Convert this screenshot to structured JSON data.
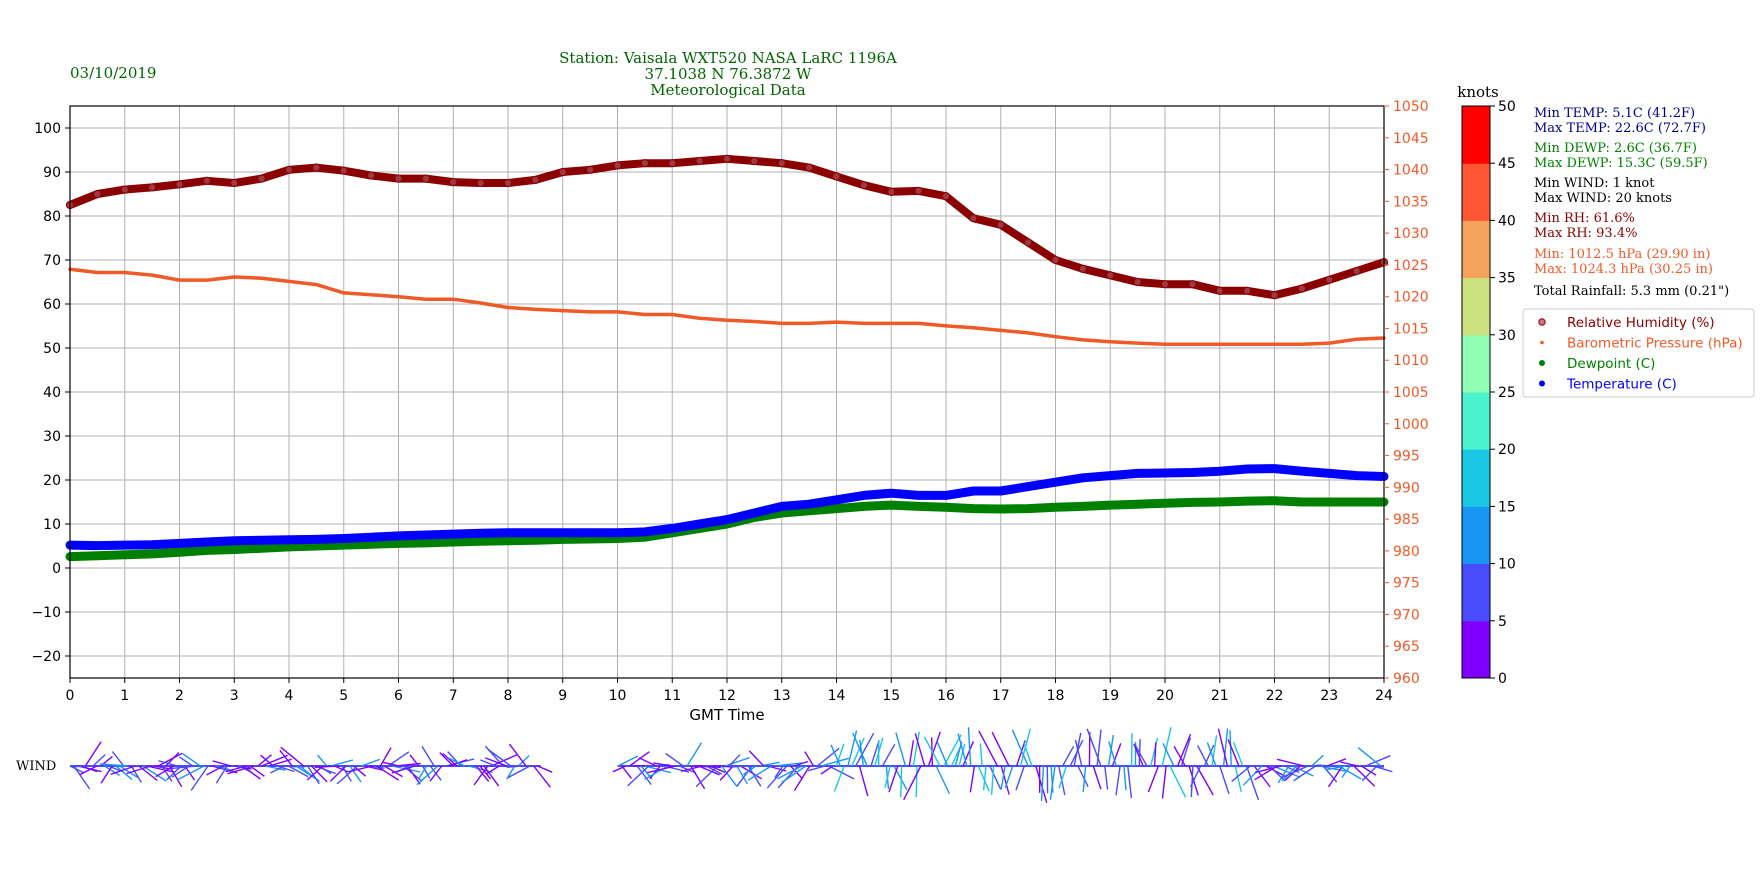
{
  "header": {
    "date": "03/10/2019",
    "title_lines": [
      "Station:  Vaisala WXT520  NASA LaRC 1196A",
      "37.1038 N 76.3872 W",
      "Meteorological Data"
    ]
  },
  "colors": {
    "rh": "#8b0000",
    "pressure": "#f05a28",
    "dewpoint": "#008000",
    "temperature": "#0000ff",
    "header_text": "#006400",
    "stats_temp": "#00008b",
    "stats_rh": "#8b0000"
  },
  "stats": [
    {
      "text": "Min TEMP: 5.1C (41.2F)",
      "color": "#00008b"
    },
    {
      "text": "Max TEMP: 22.6C (72.7F)",
      "color": "#00008b"
    },
    {
      "text": "Min DEWP: 2.6C (36.7F)",
      "color": "#008000"
    },
    {
      "text": "Max DEWP: 15.3C (59.5F)",
      "color": "#008000"
    },
    {
      "text": "Min WIND: 1 knot",
      "color": "#000000"
    },
    {
      "text": "Max WIND: 20 knots",
      "color": "#000000"
    },
    {
      "text": "Min RH: 61.6%",
      "color": "#8b0000"
    },
    {
      "text": "Max RH: 93.4%",
      "color": "#8b0000"
    },
    {
      "text": "Min: 1012.5 hPa (29.90 in)",
      "color": "#f05a28"
    },
    {
      "text": "Max: 1024.3 hPa (30.25 in)",
      "color": "#f05a28"
    },
    {
      "text": "Total Rainfall: 5.3 mm (0.21\")",
      "color": "#000000"
    }
  ],
  "legend": [
    {
      "label": "Relative Humidity (%)",
      "color": "#8b0000",
      "marker": "hollow"
    },
    {
      "label": "Barometric Pressure (hPa)",
      "color": "#f05a28",
      "marker": "small"
    },
    {
      "label": "Dewpoint (C)",
      "color": "#008000",
      "marker": "dot"
    },
    {
      "label": "Temperature (C)",
      "color": "#0000ff",
      "marker": "dot"
    }
  ],
  "wind_label": "WIND",
  "colorbar": {
    "title": "knots",
    "ticks": [
      "0",
      "5",
      "10",
      "15",
      "20",
      "25",
      "30",
      "35",
      "40",
      "45",
      "50"
    ],
    "bands": [
      "#7f00ff",
      "#4a4bfb",
      "#1996f3",
      "#1ac7e3",
      "#4cf2ce",
      "#91ffb3",
      "#cbe27f",
      "#f6a35e",
      "#ff5733",
      "#ff0000"
    ]
  },
  "chart_data": {
    "type": "scatter",
    "xlabel": "GMT Time",
    "xlim": [
      0,
      24
    ],
    "x_ticks": [
      "0",
      "1",
      "2",
      "3",
      "4",
      "5",
      "6",
      "7",
      "8",
      "9",
      "10",
      "11",
      "12",
      "13",
      "14",
      "15",
      "16",
      "17",
      "18",
      "19",
      "20",
      "21",
      "22",
      "23",
      "24"
    ],
    "left_axis": {
      "ylim": [
        -25,
        105
      ],
      "ticks": [
        "100",
        "90",
        "80",
        "70",
        "60",
        "50",
        "40",
        "30",
        "20",
        "10",
        "0",
        "−10",
        "−20"
      ]
    },
    "right_axis": {
      "ylim": [
        960,
        1050
      ],
      "ticks": [
        "1050",
        "1045",
        "1040",
        "1035",
        "1030",
        "1025",
        "1020",
        "1015",
        "1010",
        "1005",
        "1000",
        "995",
        "990",
        "985",
        "980",
        "975",
        "970",
        "965",
        "960"
      ]
    },
    "grid": true,
    "legend_position": "right",
    "series": [
      {
        "name": "Relative Humidity (%)",
        "axis": "left",
        "x": [
          0,
          0.5,
          1,
          1.5,
          2,
          2.5,
          3,
          3.5,
          4,
          4.5,
          5,
          5.5,
          6,
          6.5,
          7,
          7.5,
          8,
          8.5,
          9,
          9.5,
          10,
          10.5,
          11,
          11.5,
          12,
          12.5,
          13,
          13.5,
          14,
          14.5,
          15,
          15.5,
          16,
          16.5,
          17,
          17.5,
          18,
          18.5,
          19,
          19.5,
          20,
          20.5,
          21,
          21.5,
          22,
          22.5,
          23,
          23.5,
          24
        ],
        "values": [
          82.5,
          85,
          86,
          86.5,
          87.2,
          88,
          87.5,
          88.5,
          90.5,
          91,
          90.3,
          89.2,
          88.5,
          88.5,
          87.7,
          87.5,
          87.5,
          88.2,
          90,
          90.5,
          91.5,
          92,
          92,
          92.5,
          93,
          92.5,
          92,
          91,
          89,
          87,
          85.5,
          85.7,
          84.5,
          79.5,
          78,
          74,
          70,
          68,
          66.5,
          65,
          64.5,
          64.5,
          63,
          63,
          62,
          63.5,
          65.5,
          67.5,
          69.5
        ]
      },
      {
        "name": "Barometric Pressure (hPa)",
        "axis": "right",
        "x": [
          0,
          0.5,
          1,
          1.5,
          2,
          2.5,
          3,
          3.5,
          4,
          4.5,
          5,
          5.5,
          6,
          6.5,
          7,
          7.5,
          8,
          8.5,
          9,
          9.5,
          10,
          10.5,
          11,
          11.5,
          12,
          12.5,
          13,
          13.5,
          14,
          14.5,
          15,
          15.5,
          16,
          16.5,
          17,
          17.5,
          18,
          18.5,
          19,
          19.5,
          20,
          20.5,
          21,
          21.5,
          22,
          22.5,
          23,
          23.5,
          24
        ],
        "values": [
          1024.3,
          1023.8,
          1023.8,
          1023.4,
          1022.6,
          1022.6,
          1023.1,
          1022.9,
          1022.4,
          1021.9,
          1020.6,
          1020.3,
          1020.0,
          1019.6,
          1019.6,
          1019.0,
          1018.3,
          1018.0,
          1017.8,
          1017.6,
          1017.6,
          1017.2,
          1017.2,
          1016.6,
          1016.3,
          1016.1,
          1015.8,
          1015.8,
          1016.0,
          1015.8,
          1015.8,
          1015.8,
          1015.4,
          1015.1,
          1014.7,
          1014.3,
          1013.7,
          1013.2,
          1012.9,
          1012.7,
          1012.5,
          1012.5,
          1012.5,
          1012.5,
          1012.5,
          1012.5,
          1012.7,
          1013.3,
          1013.5
        ]
      },
      {
        "name": "Dewpoint (C)",
        "axis": "left",
        "x": [
          0,
          0.5,
          1,
          1.5,
          2,
          2.5,
          3,
          3.5,
          4,
          4.5,
          5,
          5.5,
          6,
          6.5,
          7,
          7.5,
          8,
          8.5,
          9,
          9.5,
          10,
          10.5,
          11,
          11.5,
          12,
          12.5,
          13,
          13.5,
          14,
          14.5,
          15,
          15.5,
          16,
          16.5,
          17,
          17.5,
          18,
          18.5,
          19,
          19.5,
          20,
          20.5,
          21,
          21.5,
          22,
          22.5,
          23,
          23.5,
          24
        ],
        "values": [
          2.6,
          2.8,
          3.0,
          3.2,
          3.6,
          4.0,
          4.2,
          4.5,
          4.8,
          5.0,
          5.2,
          5.4,
          5.6,
          5.7,
          5.9,
          6.1,
          6.2,
          6.3,
          6.5,
          6.6,
          6.7,
          7.0,
          8.0,
          9.0,
          10.0,
          11.5,
          12.5,
          13.0,
          13.5,
          14.0,
          14.3,
          14.0,
          13.8,
          13.5,
          13.4,
          13.5,
          13.8,
          14.0,
          14.3,
          14.5,
          14.7,
          14.9,
          15.0,
          15.2,
          15.3,
          15.0,
          15.0,
          15.0,
          15.0
        ]
      },
      {
        "name": "Temperature (C)",
        "axis": "left",
        "x": [
          0,
          0.5,
          1,
          1.5,
          2,
          2.5,
          3,
          3.5,
          4,
          4.5,
          5,
          5.5,
          6,
          6.5,
          7,
          7.5,
          8,
          8.5,
          9,
          9.5,
          10,
          10.5,
          11,
          11.5,
          12,
          12.5,
          13,
          13.5,
          14,
          14.5,
          15,
          15.5,
          16,
          16.5,
          17,
          17.5,
          18,
          18.5,
          19,
          19.5,
          20,
          20.5,
          21,
          21.5,
          22,
          22.5,
          23,
          23.5,
          24
        ],
        "values": [
          5.2,
          5.1,
          5.2,
          5.3,
          5.6,
          5.9,
          6.2,
          6.3,
          6.4,
          6.5,
          6.7,
          7.0,
          7.3,
          7.5,
          7.7,
          7.9,
          8.0,
          8.0,
          8.0,
          8.0,
          8.0,
          8.2,
          9.0,
          10.0,
          11.0,
          12.5,
          14.0,
          14.5,
          15.5,
          16.5,
          17.0,
          16.5,
          16.5,
          17.5,
          17.5,
          18.5,
          19.5,
          20.5,
          21.0,
          21.5,
          21.6,
          21.7,
          22.0,
          22.5,
          22.6,
          22.0,
          21.5,
          21.0,
          20.8
        ]
      }
    ]
  }
}
